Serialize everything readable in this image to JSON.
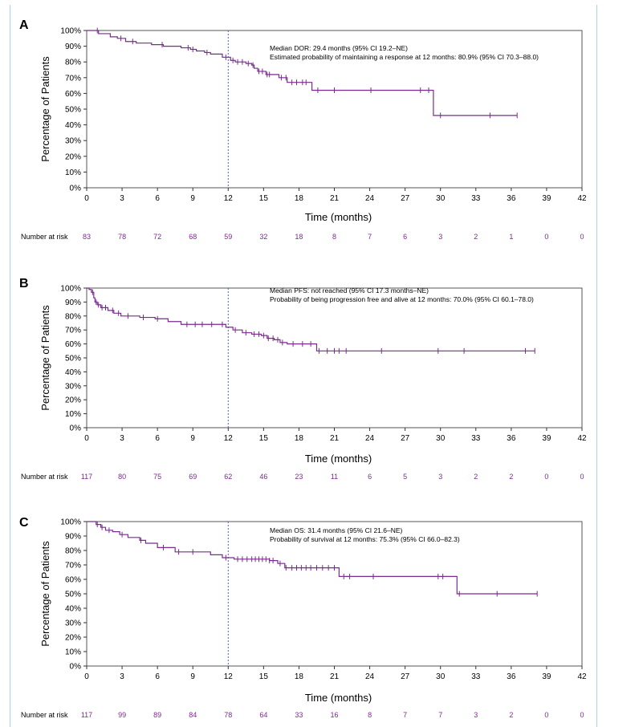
{
  "colors": {
    "curve": "#7b2a8f",
    "frame": "#a9d3ea",
    "dash": "#4a62c4",
    "risk": "#7b2a8f"
  },
  "chart_data": [
    {
      "panel": "A",
      "type": "line",
      "step": true,
      "ylabel": "Percentage of Patients",
      "xlabel": "Time (months)",
      "xlim": [
        0,
        42
      ],
      "ylim": [
        0,
        100
      ],
      "xticks": [
        0,
        3,
        6,
        9,
        12,
        15,
        18,
        21,
        24,
        27,
        30,
        33,
        36,
        39,
        42
      ],
      "yticks": [
        "0%",
        "10%",
        "20%",
        "30%",
        "40%",
        "50%",
        "60%",
        "70%",
        "80%",
        "90%",
        "100%"
      ],
      "reference_line_x": 12,
      "annotations": [
        "Median DOR: 29.4 months (95% CI 19.2–NE)",
        "Estimated probability of maintaining a response at 12 months: 80.9% (95% CI 70.3–88.0)"
      ],
      "x": [
        0,
        0.8,
        1.0,
        2.0,
        2.6,
        3.3,
        3.8,
        4.2,
        5.5,
        6.5,
        8.0,
        8.8,
        9.3,
        10.0,
        10.5,
        11.5,
        12.2,
        12.6,
        13.5,
        14.0,
        14.2,
        14.5,
        15.2,
        16.3,
        17.0,
        19.1,
        29.4,
        36.5
      ],
      "y": [
        100,
        100,
        98,
        96,
        95,
        93,
        93,
        92,
        91,
        90,
        89,
        88,
        87,
        86,
        85,
        83,
        81,
        80,
        79,
        78,
        76,
        74,
        72,
        70,
        67,
        62,
        46,
        46
      ],
      "censor_x": [
        0.9,
        2.9,
        3.9,
        6.4,
        8.6,
        9.0,
        10.2,
        11.8,
        12.4,
        12.8,
        13.2,
        13.7,
        14.1,
        14.6,
        14.9,
        15.3,
        15.5,
        16.5,
        16.9,
        17.4,
        17.8,
        18.3,
        18.6,
        19.6,
        21.0,
        24.1,
        28.3,
        29.0,
        30.0,
        34.2,
        36.5
      ],
      "risk_label": "Number at risk",
      "risk": [
        83,
        78,
        72,
        68,
        59,
        32,
        18,
        8,
        7,
        6,
        3,
        2,
        1,
        0,
        0
      ]
    },
    {
      "panel": "B",
      "type": "line",
      "step": true,
      "ylabel": "Percentage of Patients",
      "xlabel": "Time (months)",
      "xlim": [
        0,
        42
      ],
      "ylim": [
        0,
        100
      ],
      "xticks": [
        0,
        3,
        6,
        9,
        12,
        15,
        18,
        21,
        24,
        27,
        30,
        33,
        36,
        39,
        42
      ],
      "yticks": [
        "0%",
        "10%",
        "20%",
        "30%",
        "40%",
        "50%",
        "60%",
        "70%",
        "80%",
        "90%",
        "100%"
      ],
      "reference_line_x": 12,
      "annotations": [
        "Median PFS: not reached (95% CI 17.3 months–NE)",
        "Probability of being progression free and alive at 12 months: 70.0% (95% CI 60.1–78.0)"
      ],
      "x": [
        0,
        0.2,
        0.4,
        0.6,
        0.7,
        0.9,
        1.2,
        1.8,
        2.3,
        2.9,
        4.5,
        5.8,
        6.9,
        8.0,
        11.8,
        12.4,
        13.2,
        14.0,
        14.8,
        15.3,
        15.9,
        16.4,
        17.0,
        19.5,
        38.0
      ],
      "y": [
        100,
        99,
        97,
        93,
        90,
        88,
        86,
        84,
        82,
        80,
        79,
        78,
        76,
        74,
        72,
        70,
        68,
        67,
        66,
        64,
        63,
        61,
        60,
        55,
        55
      ],
      "censor_x": [
        0.5,
        0.8,
        1.0,
        1.3,
        1.6,
        2.2,
        2.7,
        3.5,
        4.8,
        6.0,
        8.5,
        9.2,
        9.8,
        10.6,
        11.5,
        12.6,
        13.5,
        14.2,
        14.6,
        15.0,
        15.4,
        15.8,
        16.2,
        16.6,
        17.5,
        18.3,
        19.0,
        19.7,
        20.4,
        21.0,
        21.4,
        22.0,
        25.0,
        29.8,
        32.0,
        37.2,
        38.0
      ],
      "risk_label": "Number at risk",
      "risk": [
        117,
        80,
        75,
        69,
        62,
        46,
        23,
        11,
        6,
        5,
        3,
        2,
        2,
        0,
        0
      ]
    },
    {
      "panel": "C",
      "type": "line",
      "step": true,
      "ylabel": "Percentage of Patients",
      "xlabel": "Time (months)",
      "xlim": [
        0,
        42
      ],
      "ylim": [
        0,
        100
      ],
      "xticks": [
        0,
        3,
        6,
        9,
        12,
        15,
        18,
        21,
        24,
        27,
        30,
        33,
        36,
        39,
        42
      ],
      "yticks": [
        "0%",
        "10%",
        "20%",
        "30%",
        "40%",
        "50%",
        "60%",
        "70%",
        "80%",
        "90%",
        "100%"
      ],
      "reference_line_x": 12,
      "annotations": [
        "Median OS: 31.4 months (95% CI 21.6–NE)",
        "Probability of survival at 12 months: 75.3% (95% CI 66.0–82.3)"
      ],
      "x": [
        0,
        0.8,
        1.2,
        1.6,
        2.2,
        2.8,
        3.5,
        4.5,
        5.0,
        6.0,
        7.5,
        10.5,
        11.5,
        12.5,
        15.5,
        16.2,
        16.8,
        21.4,
        31.4,
        38.2
      ],
      "y": [
        100,
        98,
        96,
        94,
        93,
        91,
        89,
        87,
        85,
        82,
        79,
        77,
        75,
        74,
        73,
        71,
        68,
        62,
        50,
        50
      ],
      "censor_x": [
        0.9,
        1.3,
        1.9,
        3.0,
        4.6,
        6.5,
        7.8,
        9.0,
        11.8,
        12.8,
        13.2,
        13.6,
        14.0,
        14.3,
        14.6,
        14.9,
        15.2,
        15.5,
        15.8,
        16.4,
        16.9,
        17.4,
        17.8,
        18.2,
        18.6,
        19.0,
        19.5,
        20.0,
        20.5,
        21.0,
        21.8,
        22.3,
        24.3,
        29.8,
        30.2,
        31.6,
        34.8,
        38.2
      ],
      "risk_label": "Number at risk",
      "risk": [
        117,
        99,
        89,
        84,
        78,
        64,
        33,
        16,
        8,
        7,
        7,
        3,
        2,
        0,
        0
      ]
    }
  ]
}
